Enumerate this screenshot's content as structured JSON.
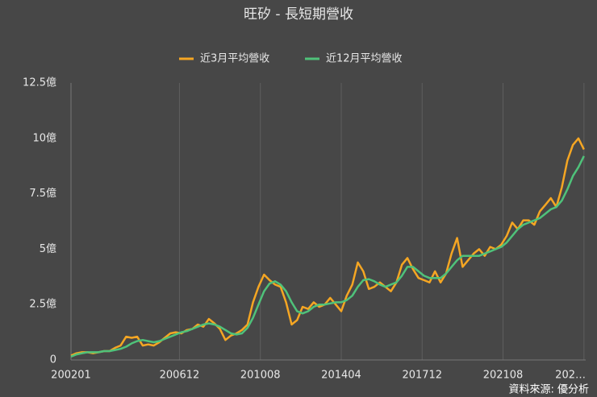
{
  "chart_data": {
    "type": "line",
    "title": "旺矽 - 長短期營收",
    "source": "資料來源: 優分析",
    "x": [
      2002,
      2002.25,
      2002.5,
      2002.75,
      2003,
      2003.25,
      2003.5,
      2003.75,
      2004,
      2004.25,
      2004.5,
      2004.75,
      2005,
      2005.25,
      2005.5,
      2005.75,
      2006,
      2006.25,
      2006.5,
      2006.75,
      2007,
      2007.25,
      2007.5,
      2007.75,
      2008,
      2008.25,
      2008.5,
      2008.75,
      2009,
      2009.25,
      2009.5,
      2009.75,
      2010,
      2010.25,
      2010.5,
      2010.75,
      2011,
      2011.25,
      2011.5,
      2011.75,
      2012,
      2012.25,
      2012.5,
      2012.75,
      2013,
      2013.25,
      2013.5,
      2013.75,
      2014,
      2014.25,
      2014.5,
      2014.75,
      2015,
      2015.25,
      2015.5,
      2015.75,
      2016,
      2016.25,
      2016.5,
      2016.75,
      2017,
      2017.25,
      2017.5,
      2017.75,
      2018,
      2018.25,
      2018.5,
      2018.75,
      2019,
      2019.25,
      2019.5,
      2019.75,
      2020,
      2020.25,
      2020.5,
      2020.75,
      2021,
      2021.25,
      2021.5,
      2021.75,
      2022,
      2022.25,
      2022.5,
      2022.75,
      2023,
      2023.25,
      2023.5,
      2023.75,
      2024,
      2024.25,
      2024.5,
      2024.75,
      2025,
      2025.25
    ],
    "series": [
      {
        "name": "近3月平均營收",
        "color": "#f5a623",
        "values": [
          0.2,
          0.3,
          0.35,
          0.35,
          0.3,
          0.35,
          0.4,
          0.4,
          0.55,
          0.65,
          1.05,
          1.0,
          1.05,
          0.65,
          0.7,
          0.65,
          0.8,
          1.0,
          1.2,
          1.25,
          1.2,
          1.35,
          1.4,
          1.6,
          1.5,
          1.85,
          1.65,
          1.4,
          0.9,
          1.1,
          1.2,
          1.35,
          1.6,
          2.6,
          3.3,
          3.85,
          3.6,
          3.4,
          3.3,
          2.6,
          1.6,
          1.8,
          2.4,
          2.3,
          2.6,
          2.4,
          2.5,
          2.8,
          2.5,
          2.2,
          2.9,
          3.4,
          4.4,
          4.0,
          3.2,
          3.3,
          3.5,
          3.3,
          3.1,
          3.5,
          4.3,
          4.6,
          4.1,
          3.7,
          3.6,
          3.5,
          4.0,
          3.5,
          3.9,
          4.8,
          5.5,
          4.2,
          4.5,
          4.8,
          5.0,
          4.7,
          5.1,
          5.0,
          5.2,
          5.6,
          6.2,
          5.9,
          6.3,
          6.3,
          6.1,
          6.7,
          7.0,
          7.3,
          6.9,
          7.8,
          9.0,
          9.7,
          10.0,
          9.5
        ]
      },
      {
        "name": "近12月平均營收",
        "color": "#4fc27a",
        "values": [
          0.15,
          0.25,
          0.3,
          0.35,
          0.35,
          0.35,
          0.4,
          0.4,
          0.45,
          0.5,
          0.6,
          0.75,
          0.85,
          0.9,
          0.85,
          0.8,
          0.85,
          0.95,
          1.05,
          1.15,
          1.25,
          1.3,
          1.4,
          1.5,
          1.6,
          1.65,
          1.6,
          1.5,
          1.35,
          1.2,
          1.15,
          1.2,
          1.45,
          1.9,
          2.5,
          3.1,
          3.45,
          3.55,
          3.4,
          3.1,
          2.6,
          2.2,
          2.1,
          2.2,
          2.4,
          2.5,
          2.5,
          2.55,
          2.6,
          2.6,
          2.7,
          2.9,
          3.3,
          3.6,
          3.65,
          3.55,
          3.4,
          3.3,
          3.4,
          3.5,
          3.8,
          4.2,
          4.2,
          4.0,
          3.8,
          3.7,
          3.7,
          3.7,
          3.9,
          4.2,
          4.5,
          4.7,
          4.7,
          4.7,
          4.7,
          4.8,
          4.9,
          5.0,
          5.1,
          5.3,
          5.6,
          5.9,
          6.1,
          6.2,
          6.3,
          6.4,
          6.6,
          6.8,
          6.9,
          7.2,
          7.7,
          8.3,
          8.7,
          9.2
        ]
      }
    ],
    "xlim": [
      2002,
      2025.33
    ],
    "xticks": [
      {
        "value": 2002,
        "label": "200201"
      },
      {
        "value": 2006.917,
        "label": "200612"
      },
      {
        "value": 2010.583,
        "label": "201008"
      },
      {
        "value": 2014.25,
        "label": "201404"
      },
      {
        "value": 2017.917,
        "label": "201712"
      },
      {
        "value": 2021.583,
        "label": "202108"
      },
      {
        "value": 2025.25,
        "label": "202…"
      }
    ],
    "ylim": [
      0,
      12.5
    ],
    "yticks": [
      0,
      {
        "value": 2.5,
        "label": "2.5億"
      },
      {
        "value": 5,
        "label": "5億"
      },
      {
        "value": 7.5,
        "label": "7.5億"
      },
      {
        "value": 10,
        "label": "10億"
      },
      {
        "value": 12.5,
        "label": "12.5億"
      }
    ],
    "grid": "x",
    "legend": "top"
  }
}
